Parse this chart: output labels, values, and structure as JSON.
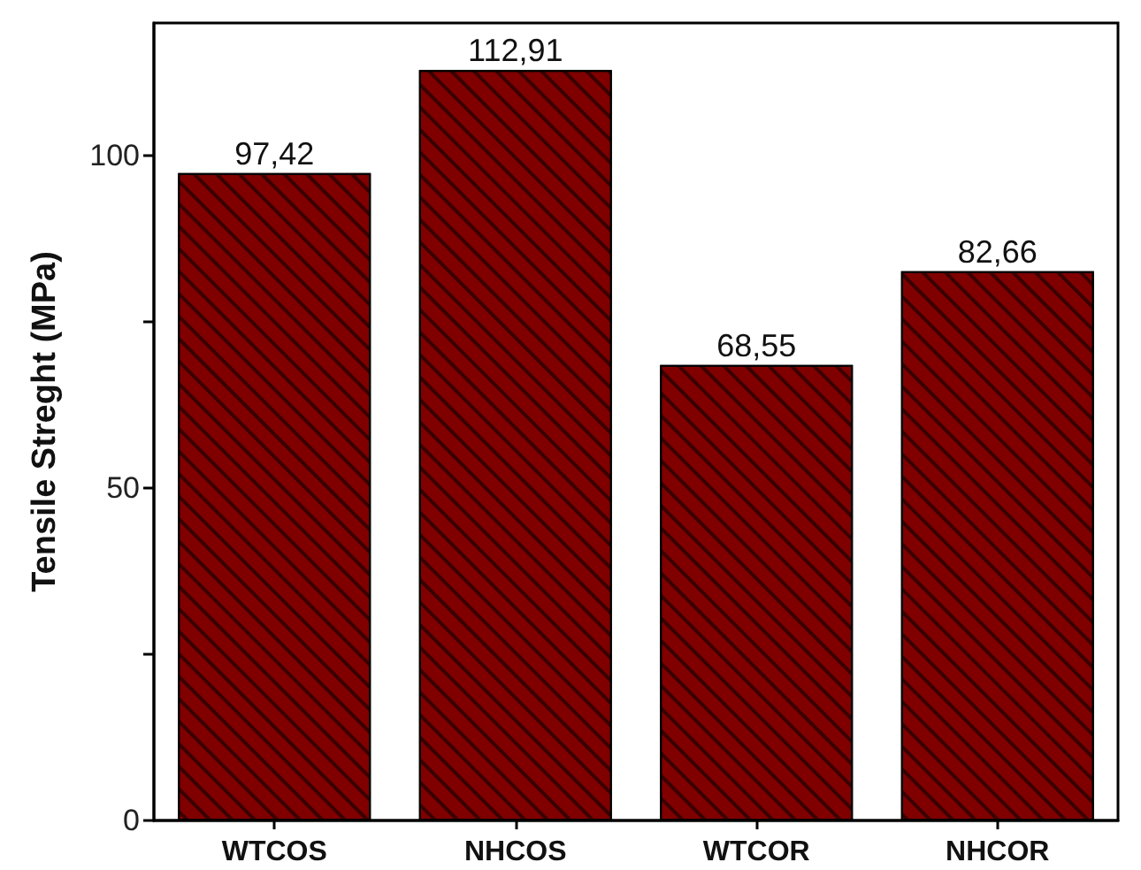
{
  "chart_data": {
    "type": "bar",
    "ylabel": "Tensile Streght (MPa)",
    "categories": [
      "WTCOS",
      "NHCOS",
      "WTCOR",
      "NHCOR"
    ],
    "values": [
      97.42,
      112.91,
      68.55,
      82.66
    ],
    "value_labels": [
      "97,42",
      "112,91",
      "68,55",
      "82,66"
    ],
    "color": "#800000",
    "ylim": [
      0,
      120
    ],
    "yticks": [
      0,
      {
        "value": 25,
        "label": null
      },
      50,
      {
        "value": 75,
        "label": null
      },
      100
    ],
    "grid": false
  }
}
